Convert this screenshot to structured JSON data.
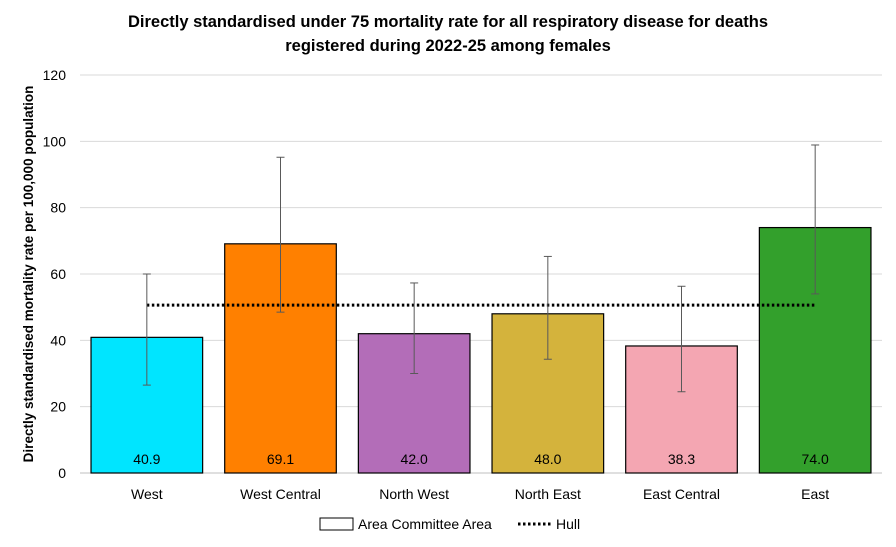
{
  "chart_data": {
    "type": "bar",
    "title_lines": [
      "Directly standardised under 75 mortality rate for all respiratory disease for deaths",
      "registered during 2022-25 among females"
    ],
    "ylabel": "Directly standardised mortality rate per 100,000 population",
    "xlabel": "",
    "ylim": [
      0,
      120
    ],
    "yticks": [
      0,
      20,
      40,
      60,
      80,
      100,
      120
    ],
    "grid": true,
    "categories": [
      "West",
      "West Central",
      "North West",
      "North East",
      "East Central",
      "East"
    ],
    "values": [
      40.9,
      69.1,
      42.0,
      48.0,
      38.3,
      74.0
    ],
    "value_labels": [
      "40.9",
      "69.1",
      "42.0",
      "48.0",
      "38.3",
      "74.0"
    ],
    "ci_lower": [
      26.5,
      48.5,
      30.0,
      34.3,
      24.5,
      54.0
    ],
    "ci_upper": [
      60.0,
      95.2,
      57.3,
      65.3,
      56.3,
      98.9
    ],
    "colors": [
      "#00e5ff",
      "#ff8000",
      "#b36db8",
      "#d4b33c",
      "#f4a6b2",
      "#33a02c"
    ],
    "reference_line": {
      "name": "Hull",
      "value": 50.6
    },
    "legend": {
      "position": "bottom",
      "entries": [
        {
          "label": "Area Committee Area",
          "style": "box"
        },
        {
          "label": "Hull",
          "style": "dotted-line"
        }
      ]
    }
  }
}
